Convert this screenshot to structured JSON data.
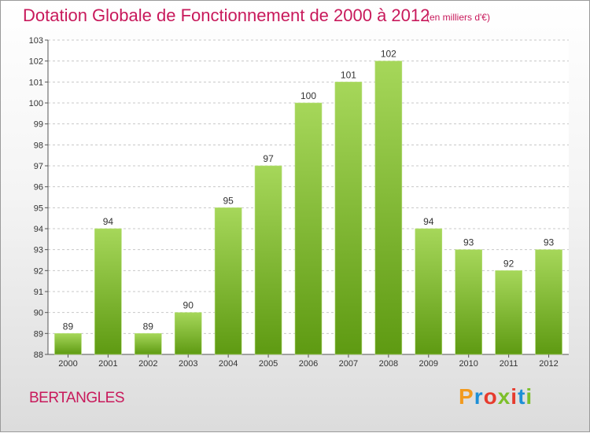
{
  "title": "Dotation Globale de Fonctionnement de 2000 à 2012",
  "unit_note": "(en milliers d'€)",
  "commune": "BERTANGLES",
  "logo": {
    "text": "Proxiti"
  },
  "colors": {
    "accent": "#c8195b",
    "bar_light": "#a6d75a",
    "bar_dark": "#5e9a12",
    "logo": [
      "#f29a1e",
      "#1d8fd6",
      "#e63b2e",
      "#7cbf2a"
    ]
  },
  "chart_data": {
    "type": "bar",
    "title": "Dotation Globale de Fonctionnement de 2000 à 2012",
    "xlabel": "",
    "ylabel": "",
    "ylim": [
      88,
      103
    ],
    "yticks": [
      88,
      89,
      90,
      91,
      92,
      93,
      94,
      95,
      96,
      97,
      98,
      99,
      100,
      101,
      102,
      103
    ],
    "grid": true,
    "categories": [
      "2000",
      "2001",
      "2002",
      "2003",
      "2004",
      "2005",
      "2006",
      "2007",
      "2008",
      "2009",
      "2010",
      "2011",
      "2012"
    ],
    "values": [
      89,
      94,
      89,
      90,
      95,
      97,
      100,
      101,
      102,
      94,
      93,
      92,
      93
    ]
  }
}
